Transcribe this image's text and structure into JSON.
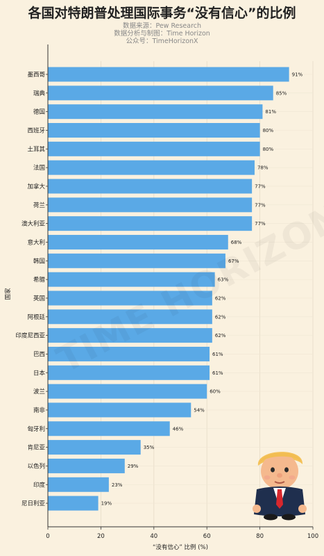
{
  "header": {
    "title": "各国对特朗普处理国际事务“没有信心”的比例",
    "source": "数据来源：Pew Research",
    "author": "数据分析与制图：Time Horizon",
    "account": "公众号：TimeHorizonX"
  },
  "watermark": "TIME HORIZON",
  "colors": {
    "bar": "#5aa9e6",
    "background": "#faf1df"
  },
  "chart_data": {
    "type": "bar",
    "orientation": "horizontal",
    "title": "各国对特朗普处理国际事务“没有信心”的比例",
    "xlabel": "“没有信心” 比例 (%)",
    "ylabel": "国家",
    "xlim": [
      0,
      100
    ],
    "xticks": [
      0,
      20,
      40,
      60,
      80,
      100
    ],
    "categories": [
      "墨西哥",
      "瑞典",
      "德国",
      "西班牙",
      "土耳其",
      "法国",
      "加拿大",
      "荷兰",
      "澳大利亚",
      "意大利",
      "韩国",
      "希腊",
      "英国",
      "阿根廷",
      "印度尼西亚",
      "巴西",
      "日本",
      "波兰",
      "南非",
      "匈牙利",
      "肯尼亚",
      "以色列",
      "印度",
      "尼日利亚"
    ],
    "values": [
      91,
      85,
      81,
      80,
      80,
      78,
      77,
      77,
      77,
      68,
      67,
      63,
      62,
      62,
      62,
      61,
      61,
      60,
      54,
      46,
      35,
      29,
      23,
      19
    ],
    "value_labels": [
      "91%",
      "85%",
      "81%",
      "80%",
      "80%",
      "78%",
      "77%",
      "77%",
      "77%",
      "68%",
      "67%",
      "63%",
      "62%",
      "62%",
      "62%",
      "61%",
      "61%",
      "60%",
      "54%",
      "46%",
      "35%",
      "29%",
      "23%",
      "19%"
    ],
    "grid": true,
    "legend": "none"
  }
}
